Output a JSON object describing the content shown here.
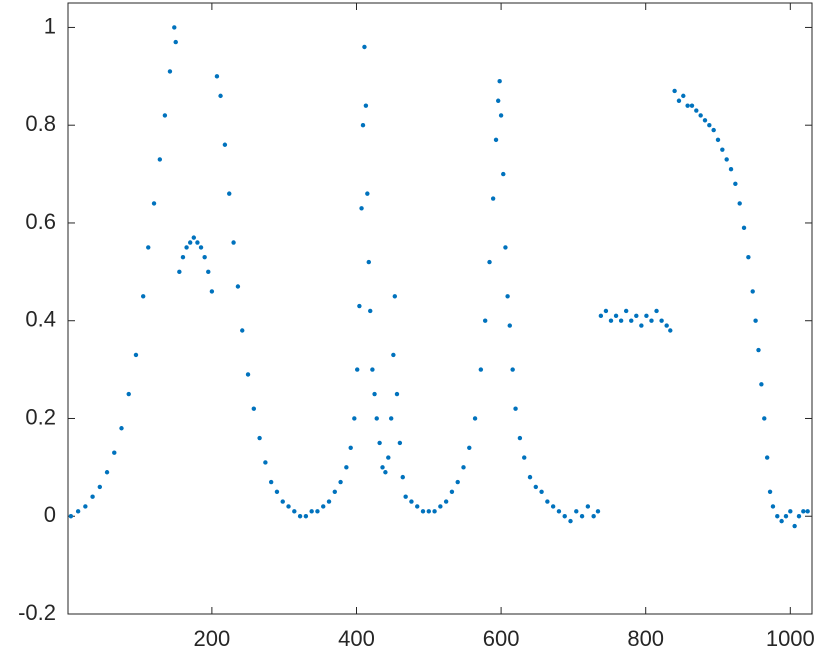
{
  "chart_data": {
    "type": "scatter",
    "color": "#0072BD",
    "xlim": [
      1,
      1030
    ],
    "ylim": [
      -0.2,
      1.05
    ],
    "xticks": [
      200,
      400,
      600,
      800,
      1000
    ],
    "yticks": [
      -0.2,
      0,
      0.2,
      0.4,
      0.6,
      0.8,
      1
    ],
    "x": [
      5,
      15,
      25,
      35,
      45,
      55,
      65,
      75,
      85,
      95,
      105,
      112,
      120,
      128,
      135,
      142,
      148,
      150,
      155,
      160,
      165,
      170,
      175,
      180,
      185,
      190,
      195,
      200,
      207,
      212,
      218,
      224,
      230,
      236,
      242,
      250,
      258,
      266,
      274,
      282,
      290,
      298,
      306,
      314,
      322,
      330,
      338,
      346,
      354,
      362,
      370,
      378,
      386,
      392,
      397,
      401,
      404,
      407,
      409,
      411,
      413,
      415,
      417,
      419,
      422,
      425,
      428,
      432,
      436,
      440,
      444,
      448,
      451,
      453,
      456,
      460,
      464,
      468,
      476,
      484,
      492,
      500,
      508,
      516,
      524,
      532,
      540,
      548,
      556,
      564,
      572,
      578,
      584,
      589,
      593,
      596,
      598,
      600,
      603,
      606,
      609,
      612,
      616,
      620,
      626,
      632,
      640,
      648,
      656,
      664,
      672,
      680,
      688,
      696,
      704,
      712,
      720,
      728,
      734,
      738,
      745,
      752,
      759,
      766,
      773,
      780,
      787,
      794,
      801,
      808,
      815,
      822,
      829,
      834,
      840,
      846,
      852,
      858,
      864,
      870,
      876,
      882,
      888,
      894,
      900,
      906,
      912,
      918,
      924,
      930,
      936,
      942,
      948,
      952,
      956,
      960,
      964,
      968,
      972,
      976,
      982,
      988,
      994,
      1000,
      1006,
      1012,
      1018,
      1024
    ],
    "values": [
      0.0,
      0.01,
      0.02,
      0.04,
      0.06,
      0.09,
      0.13,
      0.18,
      0.25,
      0.33,
      0.45,
      0.55,
      0.64,
      0.73,
      0.82,
      0.91,
      1.0,
      0.97,
      0.5,
      0.53,
      0.55,
      0.56,
      0.57,
      0.56,
      0.55,
      0.53,
      0.5,
      0.46,
      0.9,
      0.86,
      0.76,
      0.66,
      0.56,
      0.47,
      0.38,
      0.29,
      0.22,
      0.16,
      0.11,
      0.07,
      0.05,
      0.03,
      0.02,
      0.01,
      0.0,
      0.0,
      0.01,
      0.01,
      0.02,
      0.03,
      0.05,
      0.07,
      0.1,
      0.14,
      0.2,
      0.3,
      0.43,
      0.63,
      0.8,
      0.96,
      0.84,
      0.66,
      0.52,
      0.42,
      0.3,
      0.25,
      0.2,
      0.15,
      0.1,
      0.09,
      0.12,
      0.2,
      0.33,
      0.45,
      0.25,
      0.15,
      0.08,
      0.04,
      0.03,
      0.02,
      0.01,
      0.01,
      0.01,
      0.02,
      0.03,
      0.05,
      0.07,
      0.1,
      0.14,
      0.2,
      0.3,
      0.4,
      0.52,
      0.65,
      0.77,
      0.85,
      0.89,
      0.82,
      0.7,
      0.55,
      0.45,
      0.39,
      0.3,
      0.22,
      0.16,
      0.12,
      0.08,
      0.06,
      0.05,
      0.03,
      0.02,
      0.01,
      0.0,
      -0.01,
      0.01,
      0.0,
      0.02,
      0.0,
      0.01,
      0.41,
      0.42,
      0.4,
      0.41,
      0.4,
      0.42,
      0.4,
      0.41,
      0.39,
      0.41,
      0.4,
      0.42,
      0.4,
      0.39,
      0.38,
      0.87,
      0.85,
      0.86,
      0.84,
      0.84,
      0.83,
      0.82,
      0.81,
      0.8,
      0.79,
      0.77,
      0.75,
      0.73,
      0.71,
      0.68,
      0.64,
      0.59,
      0.53,
      0.46,
      0.4,
      0.34,
      0.27,
      0.2,
      0.12,
      0.05,
      0.02,
      0.0,
      -0.01,
      0.0,
      0.01,
      -0.02,
      0.0,
      0.01,
      0.01
    ]
  }
}
